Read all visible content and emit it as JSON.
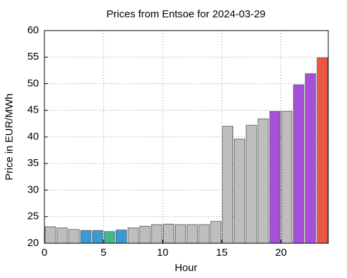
{
  "chart_data": {
    "type": "bar",
    "title": "Prices from Entsoe for 2024-03-29",
    "x_label": "Hour",
    "y_label": "Price in EUR/MWh",
    "x": [
      0,
      1,
      2,
      3,
      4,
      5,
      6,
      7,
      8,
      9,
      10,
      11,
      12,
      13,
      14,
      15,
      16,
      17,
      18,
      19,
      20,
      21,
      22,
      23
    ],
    "values": [
      23.1,
      22.9,
      22.6,
      22.4,
      22.4,
      22.2,
      22.5,
      22.9,
      23.2,
      23.5,
      23.6,
      23.5,
      23.5,
      23.5,
      24.1,
      42.0,
      39.6,
      42.2,
      43.4,
      44.8,
      44.8,
      49.8,
      51.9,
      54.9
    ],
    "colors": [
      "#bebebe",
      "#bebebe",
      "#bebebe",
      "#3a9ad6",
      "#3a9ad6",
      "#3dbb8f",
      "#3a9ad6",
      "#bebebe",
      "#bebebe",
      "#bebebe",
      "#bebebe",
      "#bebebe",
      "#bebebe",
      "#bebebe",
      "#bebebe",
      "#bebebe",
      "#bebebe",
      "#bebebe",
      "#bebebe",
      "#a64fd9",
      "#bebebe",
      "#a64fd9",
      "#a64fd9",
      "#ee5544"
    ],
    "xlim": [
      0,
      24
    ],
    "xticks": [
      0,
      5,
      10,
      15,
      20
    ],
    "ylim": [
      20,
      60
    ],
    "yticks": [
      20,
      25,
      30,
      35,
      40,
      45,
      50,
      55,
      60
    ],
    "grid": true
  }
}
